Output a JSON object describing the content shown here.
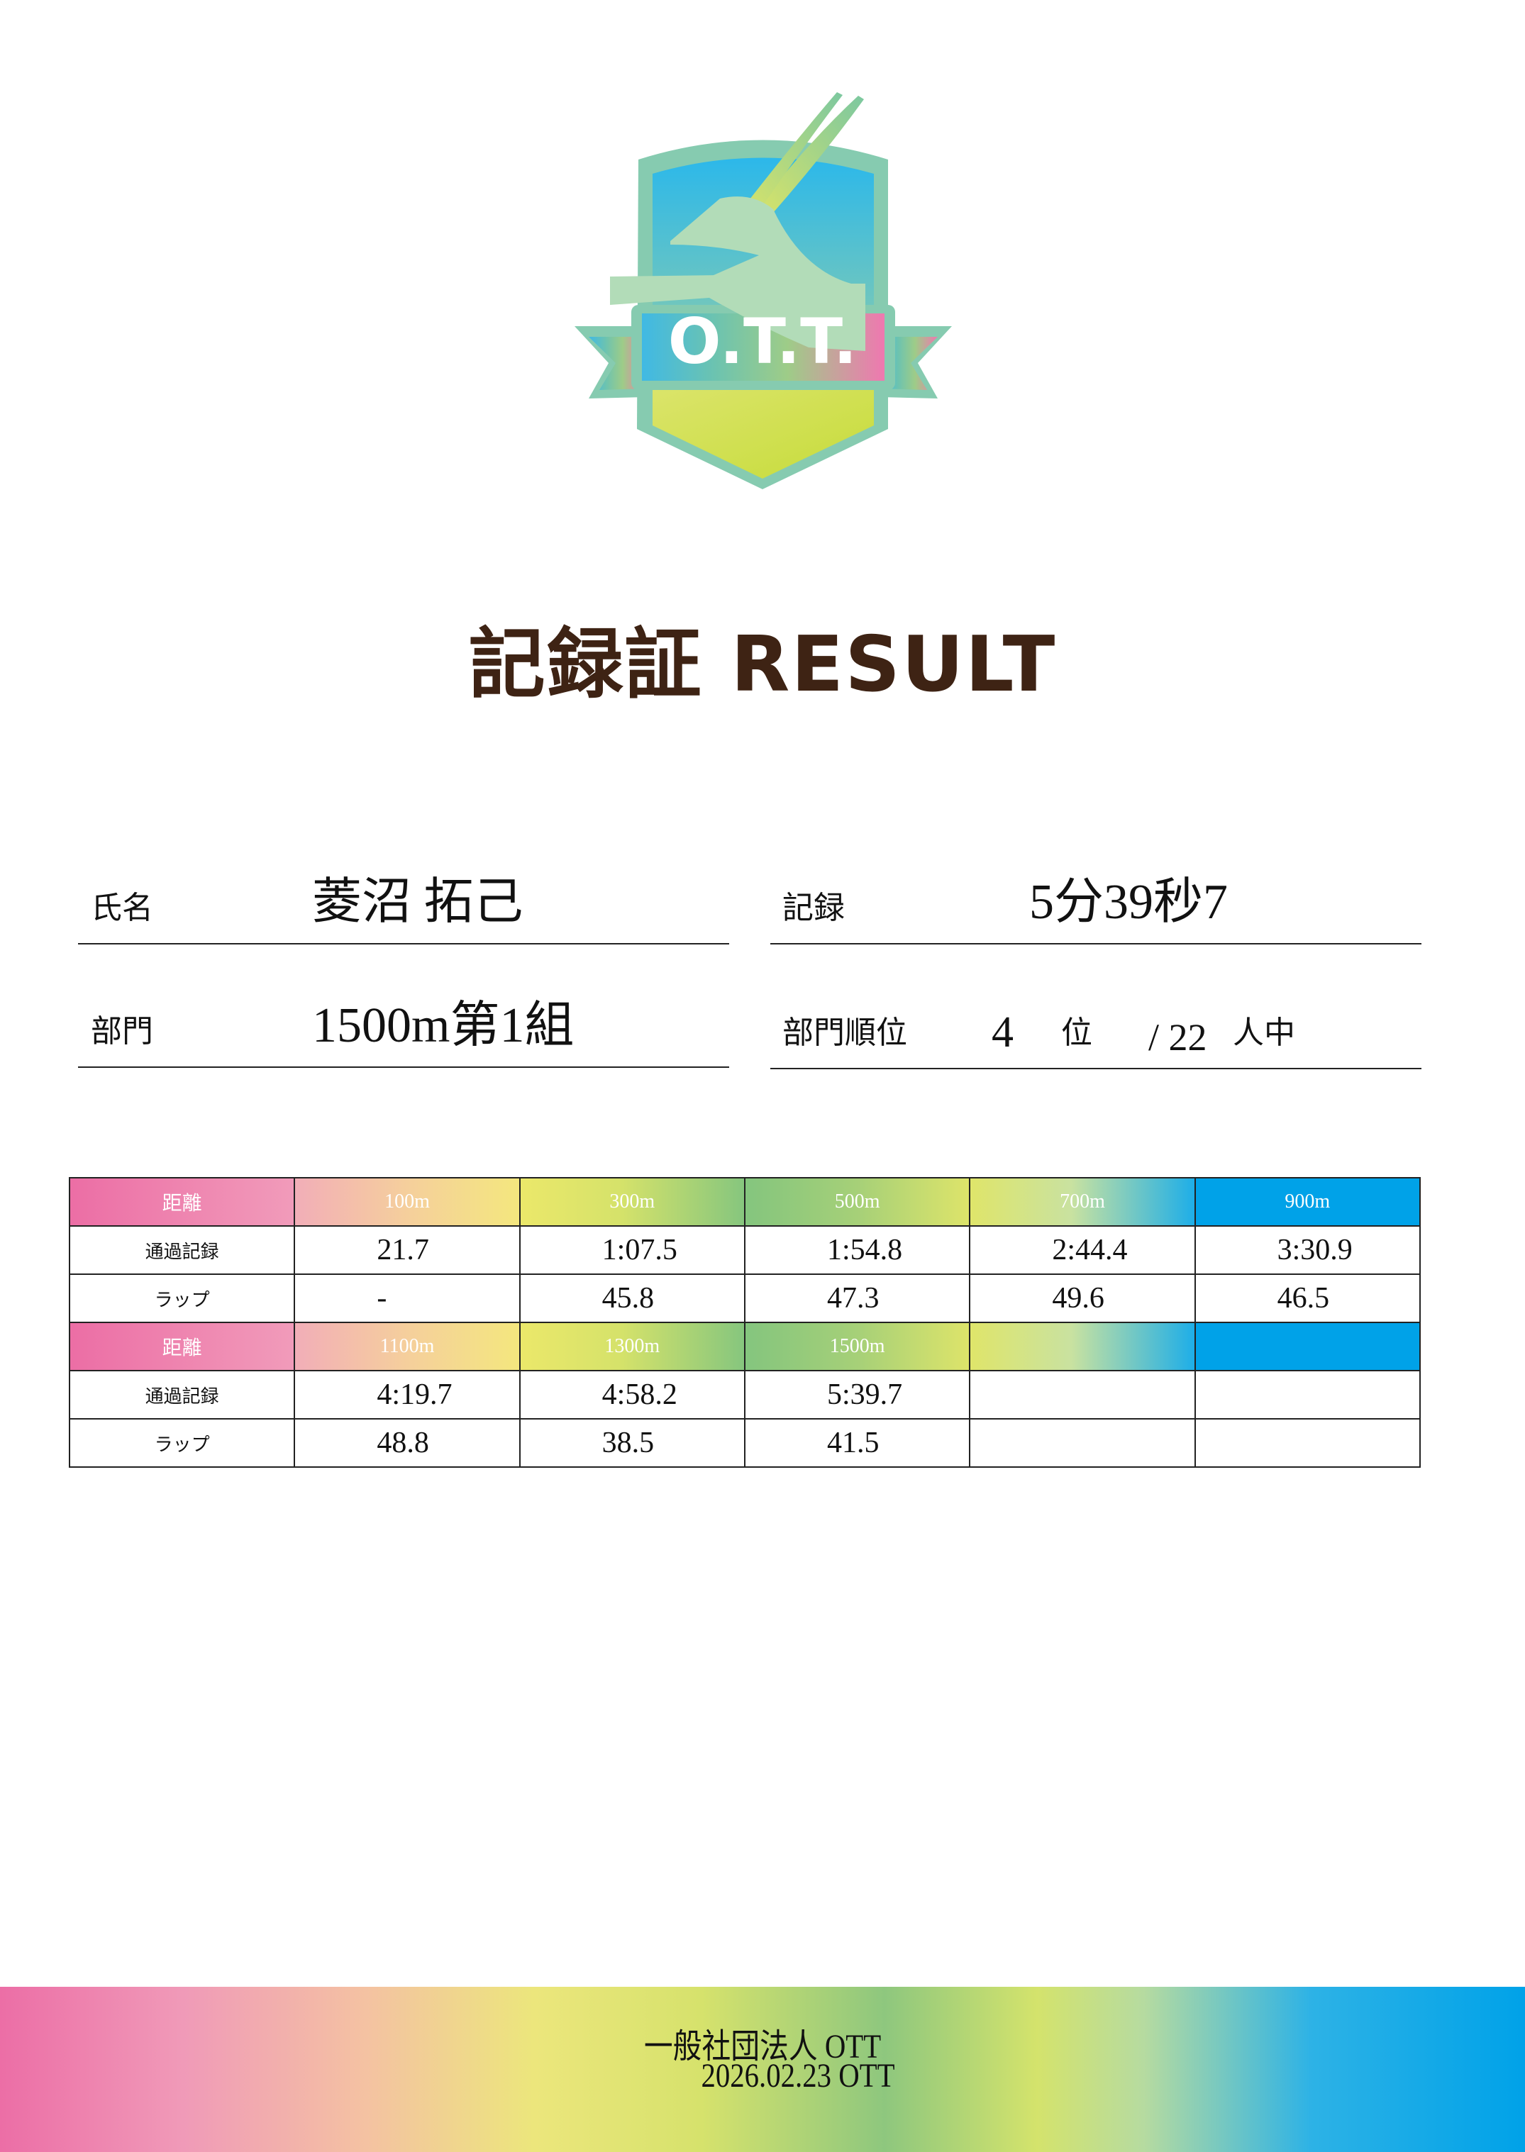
{
  "logo": {
    "text": "O.T.T.",
    "colors": {
      "frame": "#86cbb0",
      "sky_top": "#2cb8e8",
      "ribbon_pink": "#ef7ab0",
      "base_yellow": "#cfe04a"
    }
  },
  "title": "記録証 RESULT",
  "fields": {
    "name": {
      "label": "氏名",
      "value": "菱沼 拓己"
    },
    "record": {
      "label": "記録",
      "value": "5分39秒7"
    },
    "division": {
      "label": "部門",
      "value": "1500m第1組"
    },
    "rank": {
      "label": "部門順位",
      "value": "4",
      "unit": "位",
      "total": "/ 22",
      "total_unit": "人中"
    }
  },
  "splits": {
    "row_labels": {
      "distance": "距離",
      "passing": "通過記録",
      "lap": "ラップ"
    },
    "blocks": [
      {
        "distances": [
          "100m",
          "300m",
          "500m",
          "700m",
          "900m"
        ],
        "passing": [
          "21.7",
          "1:07.5",
          "1:54.8",
          "2:44.4",
          "3:30.9"
        ],
        "lap": [
          "-",
          "45.8",
          "47.3",
          "49.6",
          "46.5"
        ]
      },
      {
        "distances": [
          "1100m",
          "1300m",
          "1500m",
          "",
          ""
        ],
        "passing": [
          "4:19.7",
          "4:58.2",
          "5:39.7",
          "",
          ""
        ],
        "lap": [
          "48.8",
          "38.5",
          "41.5",
          "",
          ""
        ]
      }
    ]
  },
  "footer": {
    "org": "一般社団法人 OTT",
    "date_line": "2026.02.23 OTT"
  }
}
